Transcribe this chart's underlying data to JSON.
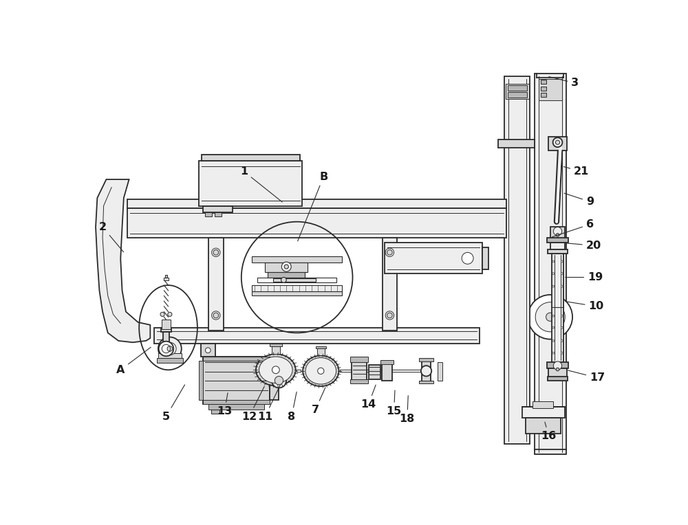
{
  "bg_color": "#ffffff",
  "line_color": "#2a2a2a",
  "fill_light": "#eeeeee",
  "fill_medium": "#d8d8d8",
  "fill_dark": "#b8b8b8",
  "lw_main": 1.3,
  "lw_thin": 0.7,
  "annotations": [
    [
      "1",
      295,
      205,
      370,
      265
    ],
    [
      "2",
      28,
      310,
      70,
      360
    ],
    [
      "3",
      920,
      38,
      867,
      25
    ],
    [
      "A",
      62,
      580,
      122,
      535
    ],
    [
      "B",
      445,
      215,
      395,
      340
    ],
    [
      "5",
      148,
      668,
      185,
      605
    ],
    [
      "6",
      948,
      305,
      873,
      330
    ],
    [
      "7",
      430,
      655,
      450,
      610
    ],
    [
      "8",
      385,
      668,
      395,
      618
    ],
    [
      "9",
      948,
      262,
      896,
      245
    ],
    [
      "10",
      960,
      460,
      898,
      450
    ],
    [
      "11",
      335,
      668,
      365,
      605
    ],
    [
      "12",
      305,
      668,
      335,
      608
    ],
    [
      "13",
      258,
      658,
      265,
      620
    ],
    [
      "14",
      530,
      645,
      545,
      605
    ],
    [
      "15",
      578,
      658,
      580,
      615
    ],
    [
      "16",
      870,
      705,
      862,
      675
    ],
    [
      "17",
      962,
      595,
      903,
      580
    ],
    [
      "18",
      603,
      672,
      605,
      625
    ],
    [
      "19",
      958,
      405,
      898,
      405
    ],
    [
      "20",
      955,
      345,
      898,
      340
    ],
    [
      "21",
      932,
      205,
      895,
      195
    ]
  ]
}
